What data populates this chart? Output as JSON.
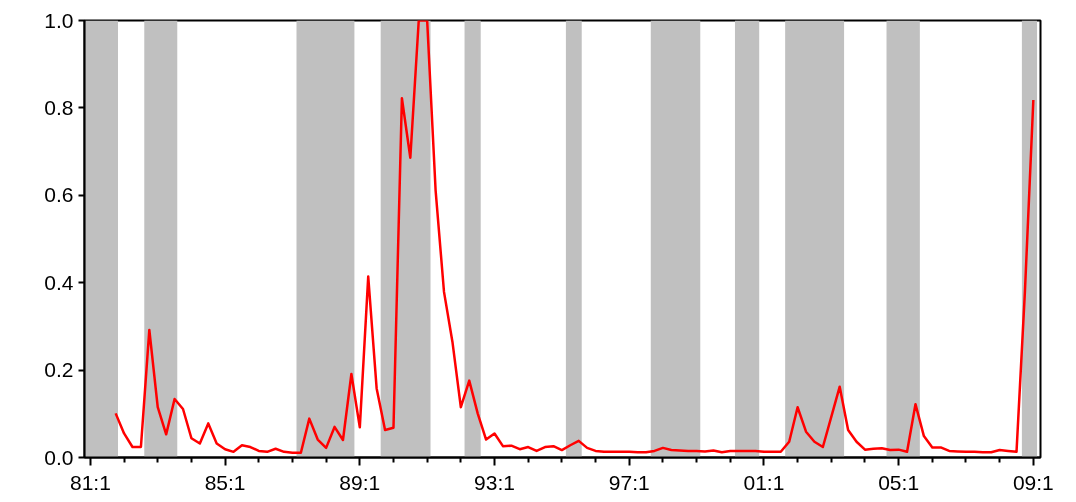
{
  "chart_data": {
    "type": "line",
    "categories": [
      "81:1",
      null,
      null,
      null,
      null,
      null,
      null,
      null,
      null,
      null,
      null,
      null,
      null,
      null,
      null,
      null,
      "85:1",
      null,
      null,
      null,
      null,
      null,
      null,
      null,
      null,
      null,
      null,
      null,
      null,
      null,
      null,
      null,
      "89:1",
      null,
      null,
      null,
      null,
      null,
      null,
      null,
      null,
      null,
      null,
      null,
      null,
      null,
      null,
      null,
      "93:1",
      null,
      null,
      null,
      null,
      null,
      null,
      null,
      null,
      null,
      null,
      null,
      null,
      null,
      null,
      null,
      "97:1",
      null,
      null,
      null,
      null,
      null,
      null,
      null,
      null,
      null,
      null,
      null,
      null,
      null,
      null,
      null,
      "01:1",
      null,
      null,
      null,
      null,
      null,
      null,
      null,
      null,
      null,
      null,
      null,
      null,
      null,
      null,
      null,
      "05:1",
      null,
      null,
      null,
      null,
      null,
      null,
      null,
      null,
      null,
      null,
      null,
      null,
      null,
      null,
      null,
      "09:1"
    ],
    "series": [
      {
        "color": "#ff0000",
        "values": [
          null,
          null,
          null,
          0.101,
          0.055,
          0.024,
          0.024,
          0.292,
          0.115,
          0.053,
          0.134,
          0.111,
          0.044,
          0.032,
          0.078,
          0.032,
          0.019,
          0.013,
          0.028,
          0.024,
          0.015,
          0.013,
          0.02,
          0.013,
          0.011,
          0.011,
          0.089,
          0.041,
          0.022,
          0.07,
          0.04,
          0.191,
          0.069,
          0.414,
          0.158,
          0.063,
          0.068,
          0.822,
          0.686,
          1.0,
          1.0,
          0.612,
          0.379,
          0.265,
          0.115,
          0.176,
          0.101,
          0.041,
          0.055,
          0.026,
          0.027,
          0.019,
          0.024,
          0.015,
          0.024,
          0.026,
          0.017,
          0.028,
          0.038,
          0.022,
          0.015,
          0.013,
          0.013,
          0.013,
          0.013,
          0.012,
          0.012,
          0.015,
          0.022,
          0.017,
          0.016,
          0.015,
          0.015,
          0.014,
          0.016,
          0.012,
          0.015,
          0.015,
          0.015,
          0.015,
          0.013,
          0.013,
          0.013,
          0.036,
          0.115,
          0.059,
          0.036,
          0.024,
          0.093,
          0.162,
          0.063,
          0.036,
          0.018,
          0.02,
          0.021,
          0.017,
          0.018,
          0.013,
          0.122,
          0.049,
          0.023,
          0.023,
          0.015,
          0.014,
          0.013,
          0.013,
          0.012,
          0.012,
          0.017,
          0.015,
          0.013,
          0.38,
          0.818
        ]
      }
    ],
    "ylim": [
      0,
      1
    ],
    "yticks": [
      {
        "value": 0,
        "label": "0.0"
      },
      {
        "value": 0.2,
        "label": "0.2"
      },
      {
        "value": 0.4,
        "label": "0.4"
      },
      {
        "value": 0.6,
        "label": "0.6"
      },
      {
        "value": 0.8,
        "label": "0.8"
      },
      {
        "value": 1,
        "label": "1.0"
      }
    ],
    "grid": false,
    "line_style": "solid"
  }
}
